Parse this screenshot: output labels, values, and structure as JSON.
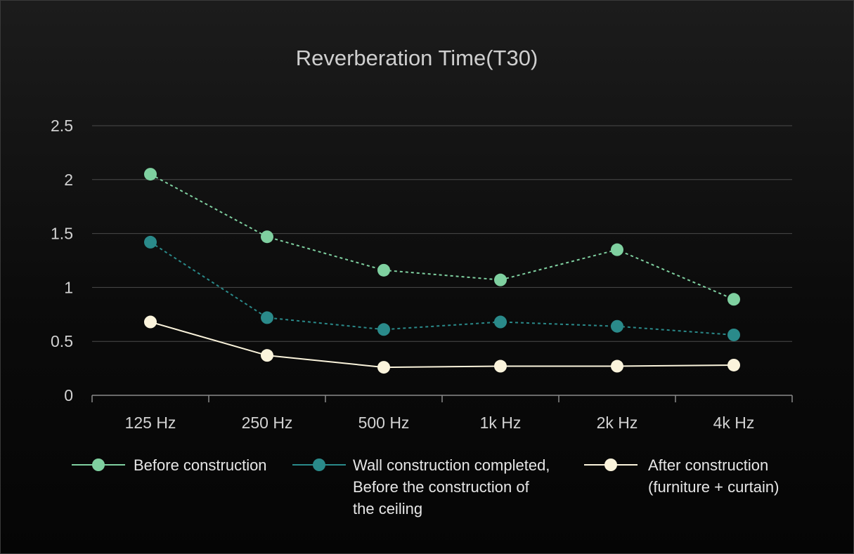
{
  "chart_data": {
    "type": "line",
    "title": "Reverberation Time(T30)",
    "xlabel": "",
    "ylabel": "",
    "categories": [
      "125 Hz",
      "250 Hz",
      "500 Hz",
      "1k Hz",
      "2k Hz",
      "4k Hz"
    ],
    "ylim": [
      0,
      2.5
    ],
    "yticks": [
      "0",
      "0.5",
      "1",
      "1.5",
      "2",
      "2.5"
    ],
    "grid": true,
    "legend_position": "bottom",
    "series": [
      {
        "name": "Before construction",
        "values": [
          2.05,
          1.47,
          1.16,
          1.07,
          1.35,
          0.89
        ],
        "color": "#7fd0a0",
        "line_style": "dashed"
      },
      {
        "name": "Wall construction completed, Before the construction of the ceiling",
        "values": [
          1.42,
          0.72,
          0.61,
          0.68,
          0.64,
          0.56
        ],
        "color": "#2a8a8a",
        "line_style": "dashed"
      },
      {
        "name": "After construction (furniture + curtain)",
        "values": [
          0.68,
          0.37,
          0.26,
          0.27,
          0.27,
          0.28
        ],
        "color": "#fbf4dc",
        "line_style": "solid"
      }
    ],
    "legend_lines": [
      [
        "Before construction"
      ],
      [
        "Wall construction completed,",
        "Before the construction of",
        "the ceiling"
      ],
      [
        "After construction",
        "(furniture + curtain)"
      ]
    ]
  }
}
